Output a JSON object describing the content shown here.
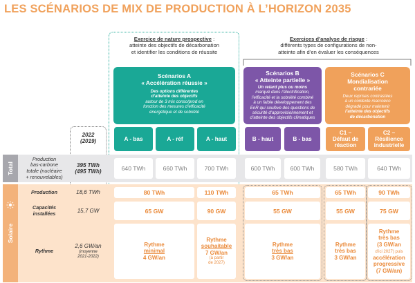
{
  "title": "LES SCÉNARIOS DE MIX DE PRODUCTION À L’HORIZON 2035",
  "prospective": {
    "heading": "Exercice de nature prospective",
    "colon": " :",
    "line1": "atteinte des objectifs de décarbonation",
    "line2": "et identifier les conditions de réussite"
  },
  "risk": {
    "heading": "Exercices d’analyse de risque",
    "colon": " :",
    "line1": "différents types de configurations de non-",
    "line2": "atteinte afin d’en évaluer les conséquences"
  },
  "scenario_a": {
    "title1": "Scénarios A",
    "title2": "« Accélération réussie »",
    "d1": "Des options différentes",
    "d2": "d’atteinte des objectifs",
    "d3": "autour de 3 mix conso/prod en",
    "d4": "fonction des mesures d’efficacité",
    "d5": "énergétique et de sobriété"
  },
  "scenario_b": {
    "title1": "Scénarios B",
    "title2": "« Atteinte partielle »",
    "d1": "Un retard plus ou moins",
    "d2": "marqué dans l’électrification,",
    "d3": "l’efficacité et la sobriété combiné",
    "d4": "à un faible développement des",
    "d5": "EnR qui soulève des questions de",
    "d6": "sécurité d’approvisionnement et",
    "d7": "d’atteinte des objectifs climatiques"
  },
  "scenario_c": {
    "title1": "Scénarios C",
    "title2": "Mondialisation",
    "title3": "contrariée",
    "d1": "Deux reprises contrastées",
    "d2": "à un contexte macroéco",
    "d3": "dégradé pour maintenir",
    "d4": "l’atteinte des objectifs",
    "d5": "de décarbonation"
  },
  "year": {
    "main": "2022",
    "sub": "(2019)"
  },
  "variants": [
    {
      "l1": "A - bas",
      "l2": ""
    },
    {
      "l1": "A - réf",
      "l2": ""
    },
    {
      "l1": "A - haut",
      "l2": ""
    },
    {
      "l1": "B - haut",
      "l2": ""
    },
    {
      "l1": "B - bas",
      "l2": ""
    },
    {
      "l1": "C1 –",
      "l2": "Défaut de",
      "l3": "réaction"
    },
    {
      "l1": "C2 –",
      "l2": "Résilience",
      "l3": "industrielle"
    }
  ],
  "total": {
    "side": "Total",
    "label1": "Production",
    "label2": "bas-carbone",
    "label3": "totale (nucléaire",
    "label4": "+ renouvelables)",
    "v2022": "395 TWh",
    "v2019": "(495 TWh)",
    "values": [
      "640 TWh",
      "660 TWh",
      "700 TWh",
      "600 TWh",
      "600 TWh",
      "580 TWh",
      "640 TWh"
    ]
  },
  "solar": {
    "side": "Solaire",
    "production_label": "Production",
    "production_2022": "18,6 TWh",
    "production_values": {
      "a_low_ref": "80 TWh",
      "a_high": "110 TWh",
      "b": "65 TWh",
      "c1": "65 TWh",
      "c2": "90 TWh"
    },
    "capacity_label1": "Capacités",
    "capacity_label2": "installées",
    "capacity_2022": "15,7 GW",
    "capacity_values": {
      "a_low_ref": "65 GW",
      "a_high": "90 GW",
      "b": "55 GW",
      "c1": "55 GW",
      "c2": "75 GW"
    },
    "rhythm_label": "Rythme",
    "rhythm_2022": "2,6 GW/an",
    "rhythm_2022_sub1": "(moyenne",
    "rhythm_2022_sub2": "2021-2022)",
    "rhythm_a_low_ref": {
      "l1": "Rythme",
      "l2": "minimal",
      "l3": "4 GW/an"
    },
    "rhythm_a_high": {
      "l1": "Rythme",
      "l2": "souhaitable",
      "l3": "7 GW/an",
      "l4": "(à partir",
      "l5": "de 2027)"
    },
    "rhythm_b": {
      "l1": "Rythme",
      "l2": "très bas",
      "l3": "3 GW/an"
    },
    "rhythm_c1": {
      "l1": "Rythme",
      "l2": "très bas",
      "l3": "3 GW/an"
    },
    "rhythm_c2": {
      "l1": "Rythme",
      "l2": "très bas",
      "l3": "(3 GW/an",
      "l4": "d’ici 2027)",
      "l4b": " puis",
      "l5": "accélération",
      "l6": "progressive",
      "l7": "(7 GW/an)"
    }
  },
  "colors": {
    "teal": "#1aa896",
    "purple": "#7d56a8",
    "orange": "#f0a15b",
    "gray_side": "#a7a7ad",
    "orange_side": "#f3b27a"
  }
}
